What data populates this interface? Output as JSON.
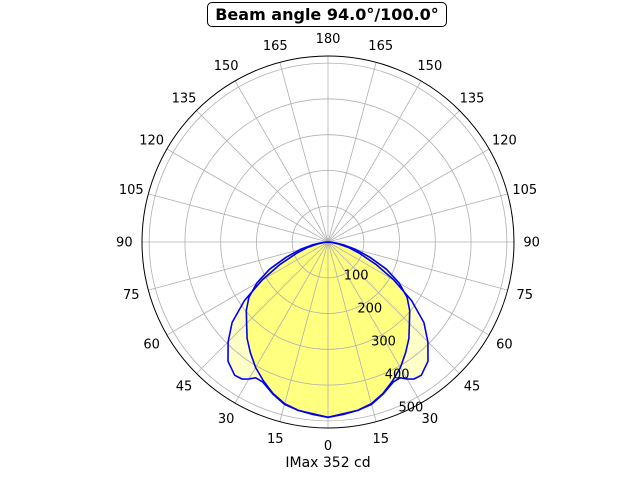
{
  "chart_data": {
    "type": "polar",
    "title": "Beam angle 94.0°/100.0°",
    "xlabel": "IMax 352 cd",
    "angle_tick_labels": [
      "180",
      "165",
      "150",
      "135",
      "120",
      "105",
      "90",
      "75",
      "60",
      "45",
      "30",
      "15",
      "0"
    ],
    "radial_ticks": [
      100,
      200,
      300,
      400,
      500
    ],
    "rlim": [
      0,
      520
    ],
    "grid": true,
    "colors": {
      "outline": "#0000ee",
      "fill_inner": "#ffff80",
      "fill_outer": "#ffffc8",
      "grid": "#b0b0b0"
    },
    "series": [
      {
        "angle_deg": [
          0,
          5,
          10,
          15,
          20,
          25,
          28,
          30,
          32,
          35,
          40,
          45,
          50,
          55,
          60,
          65,
          70,
          75,
          80,
          85,
          90
        ],
        "values": [
          490,
          482,
          478,
          470,
          452,
          432,
          430,
          442,
          452,
          455,
          435,
          395,
          350,
          285,
          212,
          148,
          95,
          60,
          30,
          10,
          0
        ]
      },
      {
        "angle_deg": [
          0,
          5,
          10,
          15,
          20,
          25,
          30,
          35,
          40,
          45,
          50,
          55,
          60,
          65,
          70,
          75,
          80,
          85,
          90
        ],
        "values": [
          490,
          484,
          478,
          468,
          450,
          428,
          405,
          378,
          352,
          322,
          298,
          270,
          230,
          180,
          125,
          80,
          42,
          15,
          0
        ]
      }
    ]
  }
}
